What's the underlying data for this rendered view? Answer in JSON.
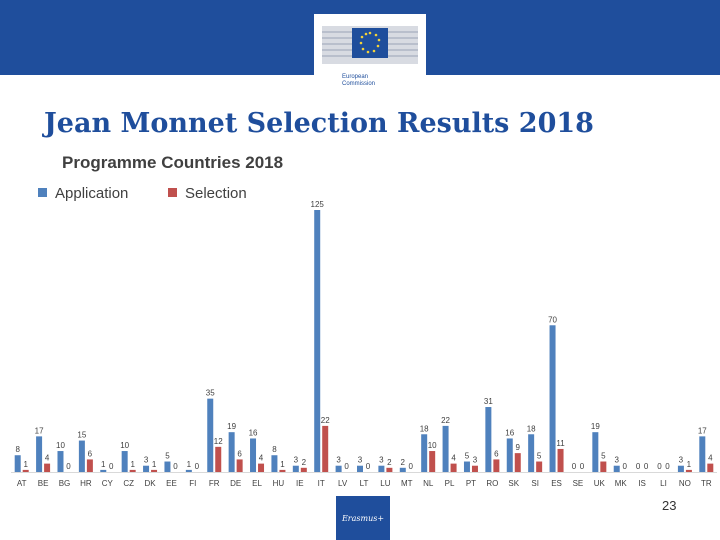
{
  "header": {
    "logo_text": "European\nCommission",
    "brand_color": "#1f4e9c"
  },
  "slide": {
    "title": "Jean Monnet Selection Results 2018",
    "page_number": "23",
    "footer_logo_text": "Erasmus+"
  },
  "chart_data": {
    "type": "bar",
    "title": "Programme Countries 2018",
    "categories": [
      "AT",
      "BE",
      "BG",
      "HR",
      "CY",
      "CZ",
      "DK",
      "EE",
      "FI",
      "FR",
      "DE",
      "EL",
      "HU",
      "IE",
      "IT",
      "LV",
      "LT",
      "LU",
      "MT",
      "NL",
      "PL",
      "PT",
      "RO",
      "SK",
      "SI",
      "ES",
      "SE",
      "UK",
      "MK",
      "IS",
      "LI",
      "NO",
      "TR"
    ],
    "series": [
      {
        "name": "Application",
        "color": "#4f81bd",
        "values": [
          8,
          17,
          10,
          15,
          1,
          10,
          3,
          5,
          1,
          35,
          19,
          16,
          8,
          3,
          125,
          3,
          3,
          3,
          2,
          18,
          22,
          5,
          31,
          16,
          18,
          70,
          0,
          19,
          3,
          0,
          0,
          3,
          17
        ]
      },
      {
        "name": "Selection",
        "color": "#c0504d",
        "values": [
          1,
          4,
          0,
          6,
          0,
          1,
          1,
          0,
          0,
          12,
          6,
          4,
          1,
          2,
          22,
          0,
          0,
          2,
          0,
          10,
          4,
          3,
          6,
          9,
          5,
          11,
          0,
          5,
          0,
          0,
          0,
          1,
          4
        ]
      }
    ],
    "ylim": [
      0,
      125
    ],
    "grid": false,
    "legend": "top-left"
  }
}
